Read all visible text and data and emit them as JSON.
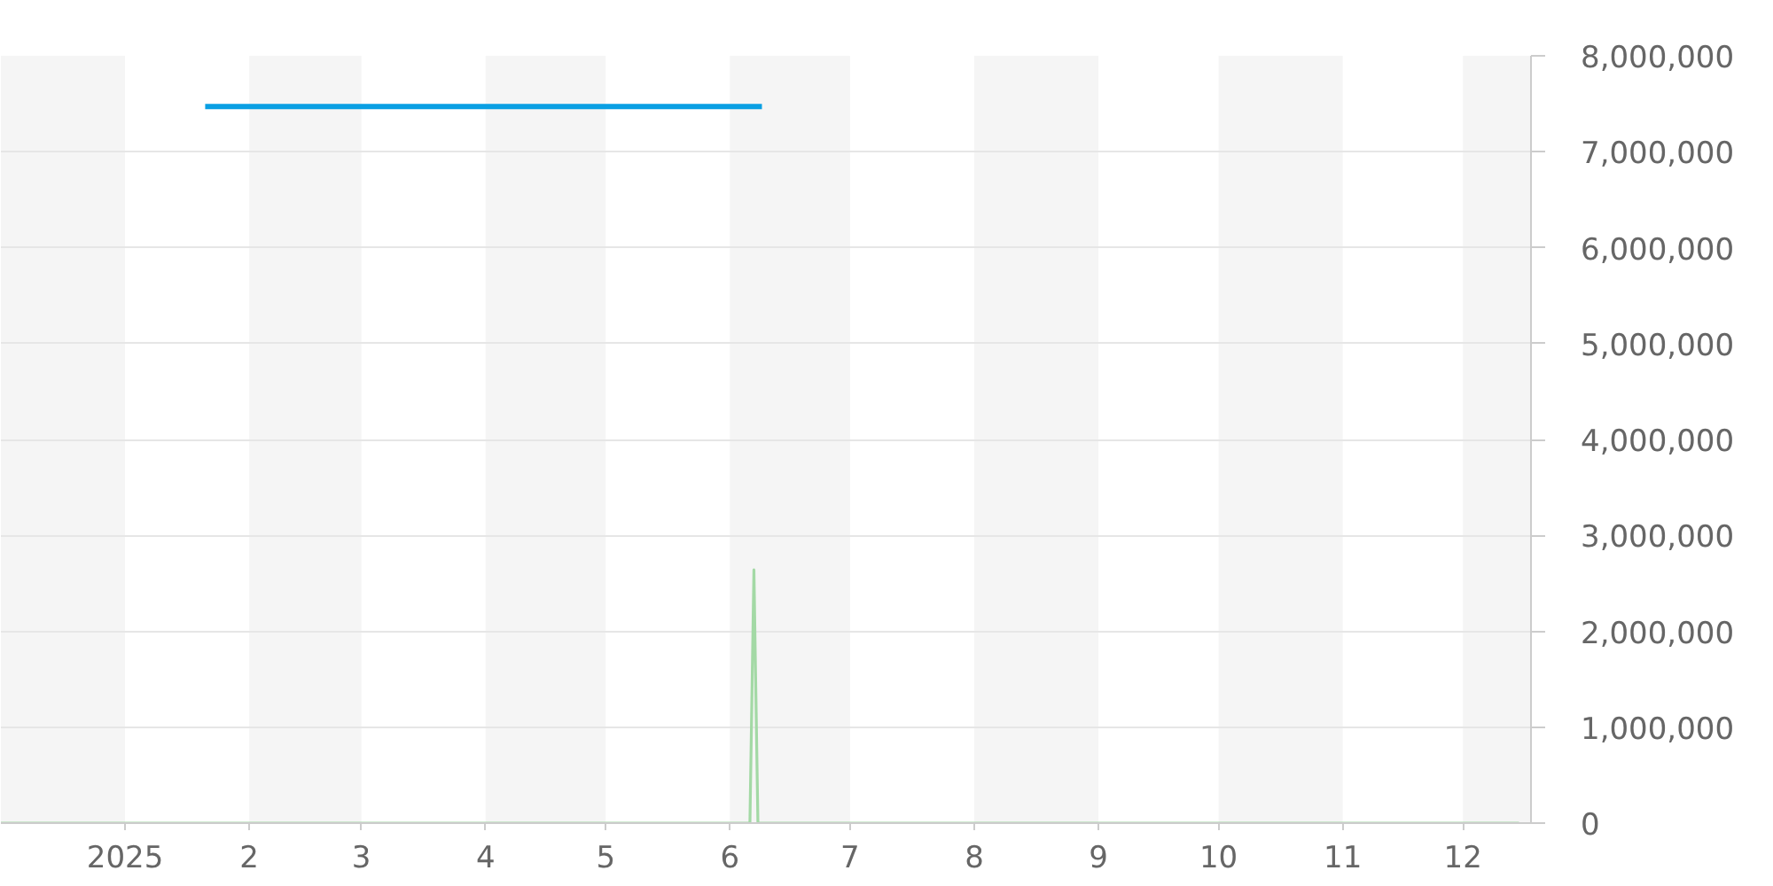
{
  "chart_data": {
    "type": "line",
    "xlim": [
      "2024-12-01",
      "2025-12-18"
    ],
    "xticks": [
      {
        "value": "2025-01-01",
        "label": "2025"
      },
      {
        "value": "2025-02-01",
        "label": "2"
      },
      {
        "value": "2025-03-01",
        "label": "3"
      },
      {
        "value": "2025-04-01",
        "label": "4"
      },
      {
        "value": "2025-05-01",
        "label": "5"
      },
      {
        "value": "2025-06-01",
        "label": "6"
      },
      {
        "value": "2025-07-01",
        "label": "7"
      },
      {
        "value": "2025-08-01",
        "label": "8"
      },
      {
        "value": "2025-09-01",
        "label": "9"
      },
      {
        "value": "2025-10-01",
        "label": "10"
      },
      {
        "value": "2025-11-01",
        "label": "11"
      },
      {
        "value": "2025-12-01",
        "label": "12"
      }
    ],
    "ylim": [
      0,
      8000000
    ],
    "yticks": [
      {
        "value": 0,
        "label": "0"
      },
      {
        "value": 1000000,
        "label": "1,000,000"
      },
      {
        "value": 2000000,
        "label": "2,000,000"
      },
      {
        "value": 3000000,
        "label": "3,000,000"
      },
      {
        "value": 4000000,
        "label": "4,000,000"
      },
      {
        "value": 5000000,
        "label": "5,000,000"
      },
      {
        "value": 6000000,
        "label": "6,000,000"
      },
      {
        "value": 7000000,
        "label": "7,000,000"
      },
      {
        "value": 8000000,
        "label": "8,000,000"
      }
    ],
    "grid": "y",
    "bands": [
      {
        "axis": "x",
        "from": "2024-12-01",
        "to": "2025-01-01",
        "color": "#f5f5f5"
      },
      {
        "axis": "x",
        "from": "2025-02-01",
        "to": "2025-03-01",
        "color": "#f5f5f5"
      },
      {
        "axis": "x",
        "from": "2025-04-01",
        "to": "2025-05-01",
        "color": "#f5f5f5"
      },
      {
        "axis": "x",
        "from": "2025-06-01",
        "to": "2025-07-01",
        "color": "#f5f5f5"
      },
      {
        "axis": "x",
        "from": "2025-08-01",
        "to": "2025-09-01",
        "color": "#f5f5f5"
      },
      {
        "axis": "x",
        "from": "2025-10-01",
        "to": "2025-11-01",
        "color": "#f5f5f5"
      },
      {
        "axis": "x",
        "from": "2025-12-01",
        "to": "2025-12-18",
        "color": "#f5f5f5"
      }
    ],
    "series": [
      {
        "color": "#a3d9a5",
        "x": [
          "2024-12-01",
          "2025-06-06",
          "2025-06-07",
          "2025-06-08",
          "2025-12-15"
        ],
        "values": [
          0,
          0,
          2640000,
          0,
          0
        ]
      },
      {
        "color": "#0a9fe3",
        "x": [
          "2025-01-21",
          "2025-06-09"
        ],
        "values": [
          7470000,
          7470000
        ]
      }
    ]
  }
}
